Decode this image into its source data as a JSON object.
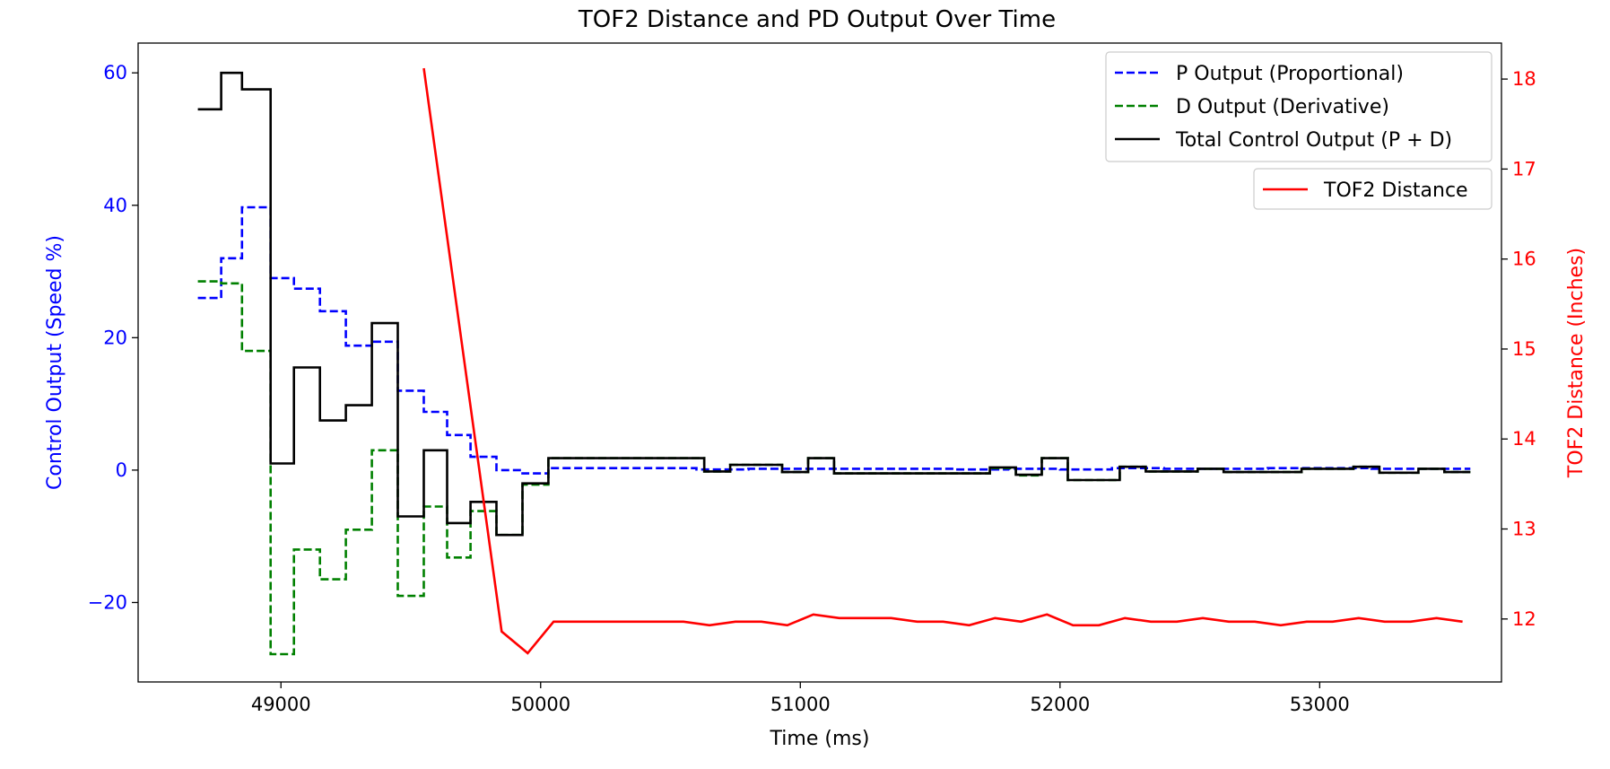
{
  "chart_data": {
    "type": "line",
    "title": "TOF2 Distance and PD Output Over Time",
    "xlabel": "Time (ms)",
    "ylabel": "Control Output (Speed %)",
    "y2label": "TOF2 Distance (Inches)",
    "xlim": [
      48450,
      53700
    ],
    "ylim": [
      -32,
      64.5
    ],
    "y2lim": [
      11.3,
      18.4
    ],
    "x_ticks": [
      49000,
      50000,
      51000,
      52000,
      53000
    ],
    "x_tick_labels": [
      "49000",
      "50000",
      "51000",
      "52000",
      "53000"
    ],
    "y_ticks": [
      60,
      40,
      20,
      0,
      -20
    ],
    "y_tick_labels": [
      "60",
      "40",
      "20",
      "0",
      "−20"
    ],
    "y2_ticks": [
      18,
      17,
      16,
      15,
      14,
      13,
      12
    ],
    "y2_tick_labels": [
      "18",
      "17",
      "16",
      "15",
      "14",
      "13",
      "12"
    ],
    "grid": false,
    "legend_placement": "top-right",
    "colors": {
      "p": "#0000ff",
      "d": "#008000",
      "total": "#000000",
      "tof": "#ff0000",
      "left_axis": "#0000ff",
      "right_axis": "#ff0000"
    },
    "series": [
      {
        "name": "P Output (Proportional)",
        "axis": "left",
        "style": "dashed",
        "step": true,
        "color": "#0000ff",
        "x": [
          48680,
          48770,
          48850,
          48960,
          49050,
          49150,
          49250,
          49350,
          49450,
          49550,
          49640,
          49730,
          49830,
          49930,
          50030,
          50200,
          50400,
          50600,
          50800,
          51000,
          51200,
          51400,
          51600,
          51800,
          52000,
          52200,
          52400,
          52600,
          52800,
          53000,
          53200,
          53580
        ],
        "y": [
          26,
          32,
          39.7,
          29,
          27.4,
          24,
          18.8,
          19.4,
          12,
          8.8,
          5.3,
          2,
          0,
          -0.5,
          0.3,
          0.3,
          0.3,
          0.1,
          0.2,
          0.2,
          0.2,
          0.2,
          0.1,
          0.2,
          0.1,
          0.3,
          0.2,
          0.2,
          0.3,
          0.3,
          0.2,
          0.2
        ]
      },
      {
        "name": "D Output (Derivative)",
        "axis": "left",
        "style": "dashed",
        "step": true,
        "color": "#008000",
        "x": [
          48680,
          48770,
          48850,
          48960,
          49050,
          49150,
          49250,
          49350,
          49450,
          49550,
          49640,
          49730,
          49830,
          49930,
          50030,
          50630,
          50730,
          50930,
          51030,
          51130,
          51630,
          51730,
          51830,
          51930,
          52030,
          52230,
          52330,
          52530,
          52630,
          52930,
          53130,
          53230,
          53380,
          53480,
          53580
        ],
        "y": [
          28.5,
          28.2,
          18,
          -27.8,
          -12,
          -16.5,
          -9,
          3,
          -19,
          -5.5,
          -13.2,
          -6.2,
          -9.8,
          -2.2,
          1.8,
          -0.2,
          0.8,
          -0.3,
          1.8,
          -0.5,
          -0.5,
          0.3,
          -0.8,
          1.8,
          -1.5,
          0.5,
          -0.2,
          0.2,
          -0.3,
          0.2,
          0.5,
          -0.4,
          0.2,
          -0.3,
          -0.3
        ]
      },
      {
        "name": "Total Control Output (P + D)",
        "axis": "left",
        "style": "solid",
        "step": true,
        "color": "#000000",
        "x": [
          48680,
          48770,
          48850,
          48960,
          49050,
          49150,
          49250,
          49350,
          49450,
          49550,
          49640,
          49730,
          49830,
          49930,
          50030,
          50630,
          50730,
          50930,
          51030,
          51130,
          51630,
          51730,
          51830,
          51930,
          52030,
          52230,
          52330,
          52530,
          52630,
          52930,
          53130,
          53230,
          53380,
          53480,
          53580
        ],
        "y": [
          54.5,
          60,
          57.5,
          1,
          15.5,
          7.5,
          9.8,
          22.2,
          -7,
          3,
          -8,
          -4.8,
          -9.8,
          -2,
          1.8,
          -0.2,
          0.8,
          -0.3,
          1.8,
          -0.5,
          -0.5,
          0.4,
          -0.7,
          1.8,
          -1.5,
          0.5,
          -0.2,
          0.2,
          -0.3,
          0.2,
          0.5,
          -0.4,
          0.2,
          -0.3,
          -0.3
        ]
      },
      {
        "name": "TOF2 Distance",
        "axis": "right",
        "style": "solid",
        "step": false,
        "color": "#ff0000",
        "x": [
          49550,
          49850,
          49950,
          50050,
          50150,
          50250,
          50350,
          50450,
          50550,
          50650,
          50750,
          50850,
          50950,
          51050,
          51150,
          51250,
          51350,
          51450,
          51550,
          51650,
          51750,
          51850,
          51950,
          52050,
          52150,
          52250,
          52350,
          52450,
          52550,
          52650,
          52750,
          52850,
          52950,
          53050,
          53150,
          53250,
          53350,
          53450,
          53550
        ],
        "y": [
          18.12,
          11.86,
          11.62,
          11.97,
          11.97,
          11.97,
          11.97,
          11.97,
          11.97,
          11.93,
          11.97,
          11.97,
          11.93,
          12.05,
          12.01,
          12.01,
          12.01,
          11.97,
          11.97,
          11.93,
          12.01,
          11.97,
          12.05,
          11.93,
          11.93,
          12.01,
          11.97,
          11.97,
          12.01,
          11.97,
          11.97,
          11.93,
          11.97,
          11.97,
          12.01,
          11.97,
          11.97,
          12.01,
          11.97
        ]
      }
    ]
  }
}
